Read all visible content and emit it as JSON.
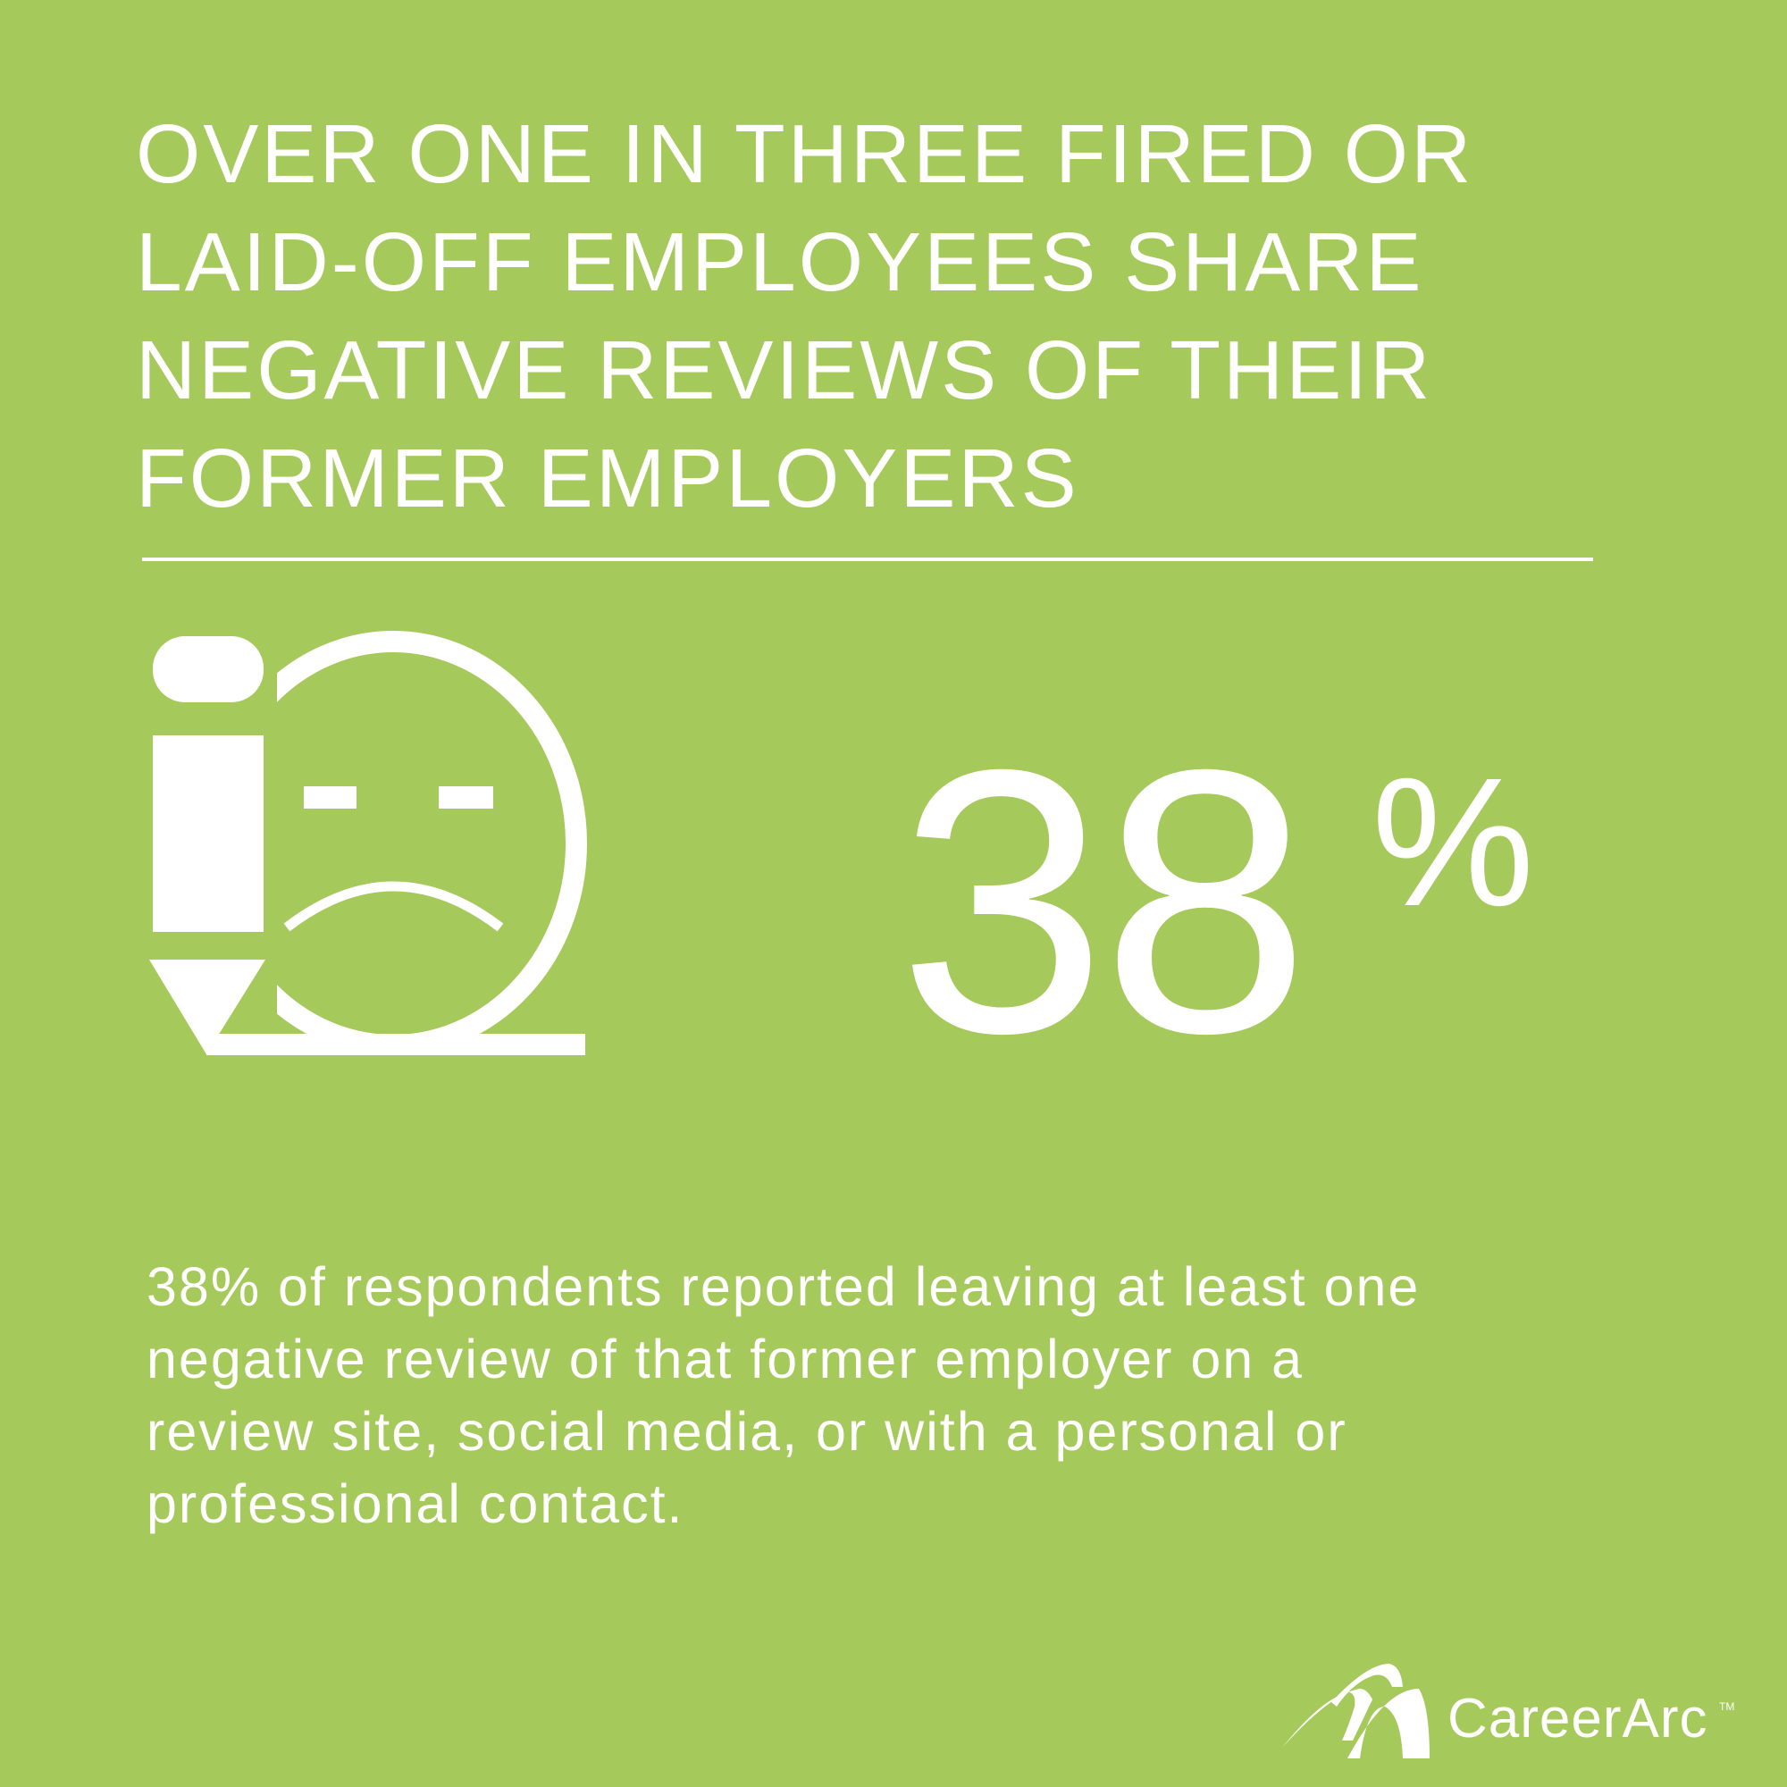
{
  "headline": {
    "lines": [
      "OVER ONE IN THREE FIRED OR",
      "LAID-OFF EMPLOYEES SHARE",
      "NEGATIVE REVIEWS OF THEIR",
      "FORMER EMPLOYERS"
    ]
  },
  "icon": "pencil-sad-face-icon",
  "stat": {
    "value": "38",
    "unit": "%"
  },
  "description": {
    "lines": [
      "38% of respondents reported leaving at least one",
      "negative review of that former employer on a",
      "review site, social media, or with a personal or",
      "professional contact."
    ]
  },
  "brand": {
    "name": "CareerArc",
    "trademark": "TM"
  },
  "colors": {
    "background": "#a5c95a",
    "foreground": "#ffffff"
  }
}
